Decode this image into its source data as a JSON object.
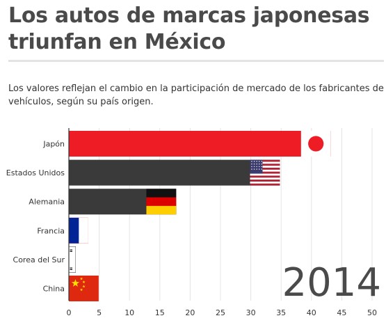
{
  "title": "Los autos de marcas japonesas triunfan en México",
  "subtitle": "Los valores reflejan el cambio en la participación de mercado de los fabricantes de vehículos, según su país origen.",
  "chart_data": {
    "type": "bar",
    "orientation": "horizontal",
    "categories": [
      "Japón",
      "Estados Unidos",
      "Alemania",
      "Francia",
      "Corea del Sur",
      "China"
    ],
    "values": [
      43.2,
      34.8,
      17.7,
      3.2,
      1.1,
      4.9
    ],
    "bar_colors": [
      "#ee1c25",
      "#3a3a3a",
      "#3a3a3a",
      "#ee1c25",
      "#ffffff",
      "#ee1c25"
    ],
    "flags": [
      "japan-flag",
      "usa-flag",
      "germany-flag",
      "france-flag",
      "south-korea-flag",
      "china-flag"
    ],
    "xlim": [
      0,
      50
    ],
    "xticks": [
      "0",
      "5",
      "10",
      "15",
      "20",
      "25",
      "30",
      "35",
      "40",
      "45",
      "50"
    ],
    "year": "2014",
    "grid": true,
    "legend": "none"
  }
}
